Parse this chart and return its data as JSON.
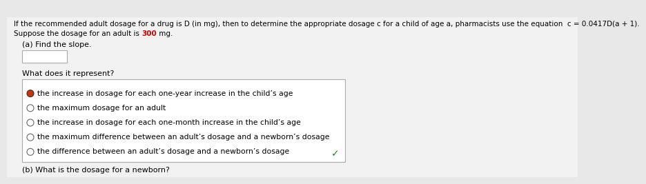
{
  "background_color": "#e8e8e8",
  "content_bg": "#f5f5f5",
  "header_line1": "If the recommended adult dosage for a drug is D (in mg), then to determine the appropriate dosage c for a child of age a, pharmacists use the equation  c = 0.0417D(a + 1).",
  "line2_before": "Suppose the dosage for an adult is ",
  "line2_highlight": "300",
  "line2_after": " mg.",
  "highlight_color": "#cc0000",
  "part_a_label": "(a) Find the slope.",
  "what_does_label": "What does it represent?",
  "options": [
    "the increase in dosage for each one-year increase in the child’s age",
    "the maximum dosage for an adult",
    "the increase in dosage for each one-month increase in the child’s age",
    "the maximum difference between an adult’s dosage and a newborn’s dosage",
    "the difference between an adult’s dosage and a newborn’s dosage"
  ],
  "selected_option": 0,
  "selected_fill_color": "#cc3300",
  "radio_border_color": "#666666",
  "options_box_border": "#aaaaaa",
  "checkmark_color": "#228822",
  "part_b_label": "(b) What is the dosage for a newborn?",
  "fs_header": 7.5,
  "fs_body": 8.0,
  "fs_options": 7.8
}
